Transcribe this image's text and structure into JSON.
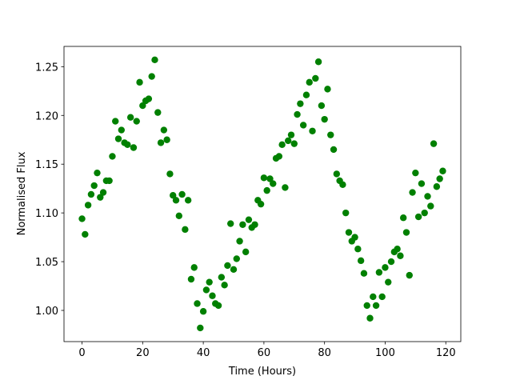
{
  "chart_data": {
    "type": "scatter",
    "xlabel": "Time (Hours)",
    "ylabel": "Normalised Flux",
    "color": "#008000",
    "x": [
      0,
      1,
      2,
      3,
      4,
      5,
      6,
      7,
      8,
      9,
      10,
      11,
      12,
      13,
      14,
      15,
      16,
      17,
      18,
      19,
      20,
      21,
      22,
      23,
      24,
      25,
      26,
      27,
      28,
      29,
      30,
      31,
      32,
      33,
      34,
      35,
      36,
      37,
      38,
      39,
      40,
      41,
      42,
      43,
      44,
      45,
      46,
      47,
      48,
      49,
      50,
      51,
      52,
      53,
      54,
      55,
      56,
      57,
      58,
      59,
      60,
      61,
      62,
      63,
      64,
      65,
      66,
      67,
      68,
      69,
      70,
      71,
      72,
      73,
      74,
      75,
      76,
      77,
      78,
      79,
      80,
      81,
      82,
      83,
      84,
      85,
      86,
      87,
      88,
      89,
      90,
      91,
      92,
      93,
      94,
      95,
      96,
      97,
      98,
      99,
      100,
      101,
      102,
      103,
      104,
      105,
      106,
      107,
      108,
      109,
      110,
      111,
      112,
      113,
      114,
      115,
      116,
      117,
      118,
      119
    ],
    "values": [
      1.094,
      1.078,
      1.108,
      1.119,
      1.128,
      1.141,
      1.116,
      1.121,
      1.133,
      1.133,
      1.158,
      1.194,
      1.176,
      1.185,
      1.172,
      1.17,
      1.198,
      1.167,
      1.194,
      1.234,
      1.21,
      1.215,
      1.217,
      1.24,
      1.257,
      1.203,
      1.172,
      1.185,
      1.175,
      1.14,
      1.118,
      1.113,
      1.097,
      1.119,
      1.083,
      1.113,
      1.032,
      1.044,
      1.007,
      0.982,
      0.999,
      1.021,
      1.029,
      1.015,
      1.007,
      1.005,
      1.034,
      1.026,
      1.046,
      1.089,
      1.042,
      1.053,
      1.071,
      1.088,
      1.06,
      1.093,
      1.085,
      1.088,
      1.113,
      1.109,
      1.136,
      1.123,
      1.135,
      1.13,
      1.156,
      1.158,
      1.17,
      1.126,
      1.174,
      1.18,
      1.171,
      1.201,
      1.212,
      1.19,
      1.221,
      1.234,
      1.184,
      1.238,
      1.255,
      1.21,
      1.196,
      1.227,
      1.18,
      1.165,
      1.14,
      1.133,
      1.129,
      1.1,
      1.08,
      1.071,
      1.075,
      1.063,
      1.051,
      1.038,
      1.005,
      0.992,
      1.014,
      1.005,
      1.039,
      1.014,
      1.044,
      1.029,
      1.05,
      1.06,
      1.063,
      1.056,
      1.095,
      1.08,
      1.036,
      1.121,
      1.141,
      1.096,
      1.13,
      1.1,
      1.117,
      1.107,
      1.171,
      1.127,
      1.135,
      1.143
    ],
    "xlim": [
      -5.95,
      124.95
    ],
    "ylim": [
      0.968,
      1.2708
    ],
    "xticks": [
      0,
      20,
      40,
      60,
      80,
      100,
      120
    ],
    "yticks": [
      {
        "value": 1,
        "label": "1.00"
      },
      1.05,
      {
        "value": 1.1,
        "label": "1.10"
      },
      1.15,
      {
        "value": 1.2,
        "label": "1.20"
      },
      1.25
    ]
  }
}
